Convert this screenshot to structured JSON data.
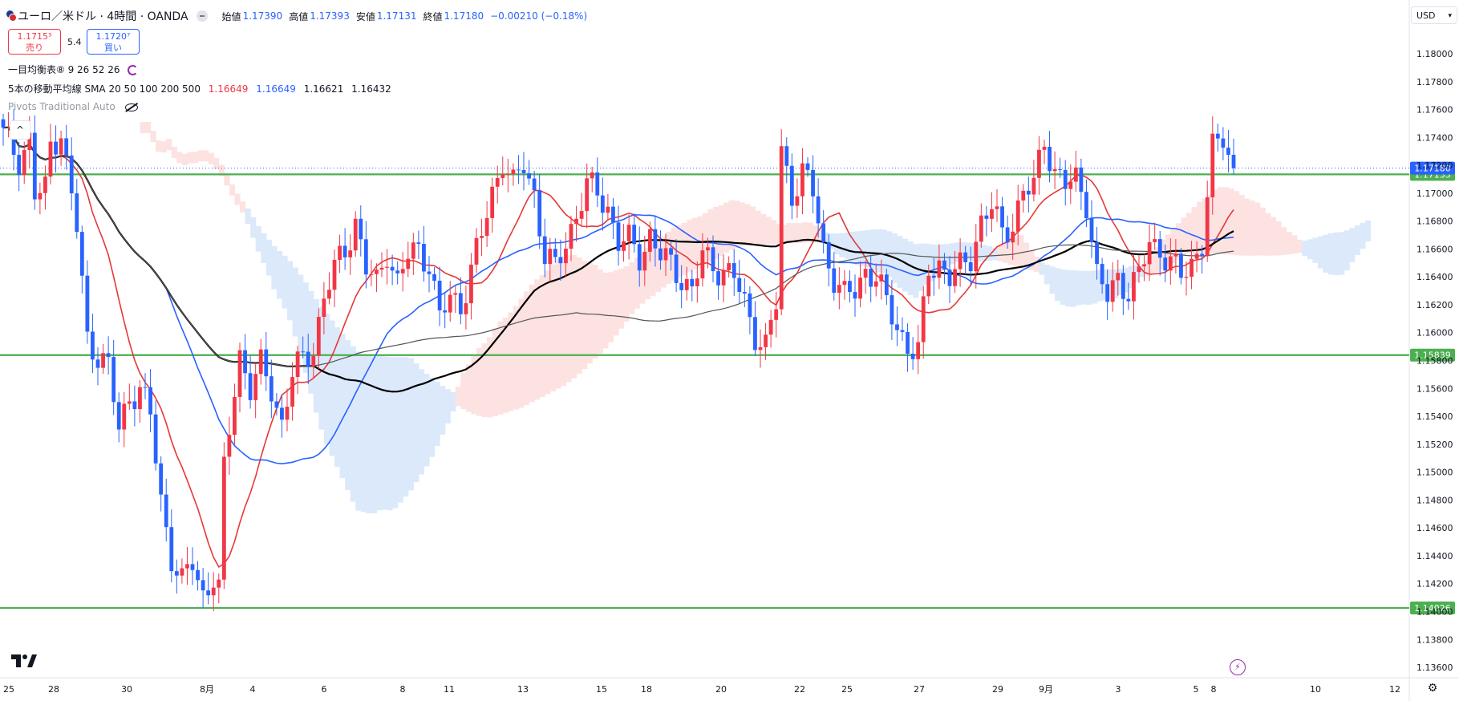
{
  "header": {
    "symbol_title": "ユーロ／米ドル · 4時間 · OANDA",
    "open_label": "始値",
    "open_value": "1.17390",
    "high_label": "高値",
    "high_value": "1.17393",
    "low_label": "安値",
    "low_value": "1.17131",
    "close_label": "終値",
    "close_value": "1.17180",
    "change": "−0.00210 (−0.18%)"
  },
  "trade": {
    "sell_price": "1.1715³",
    "sell_label": "売り",
    "spread": "5.4",
    "buy_price": "1.1720⁷",
    "buy_label": "買い"
  },
  "indicators": {
    "ichimoku": "一目均衡表⑧ 9 26 52 26",
    "sma_label": "5本の移動平均線 SMA 20 50 100 200 500",
    "sma_v1": "1.16649",
    "sma_v2": "1.16649",
    "sma_v3": "1.16621",
    "sma_v4": "1.16432",
    "pivots": "Pivots Traditional Auto",
    "collapse": "^"
  },
  "currency_button": "USD",
  "icons": {
    "logo": "tradingview-logo-icon",
    "flag": "eur-usd-flag-icon",
    "cycle": "ichimoku-cycle-icon",
    "eye_off": "eye-off-icon",
    "lightning": "lightning-icon",
    "settings": "gear-icon",
    "chevron": "chevron-down-icon"
  },
  "colors": {
    "bull": "#f23645",
    "bear": "#2962ff",
    "level_line": "#4caf50",
    "last_price": "#2962ff",
    "sma_fast": "#e53935",
    "sma_mid": "#2962ff",
    "sma_slow": "#000000",
    "sma_long": "#555555",
    "cloud_bull": "#fde2e2",
    "cloud_bear": "#dbe9fb"
  },
  "chart_data": {
    "type": "candlestick",
    "symbol": "EURUSD",
    "timeframe": "4時間",
    "ylim": [
      1.1355,
      1.183
    ],
    "y_ticks": [
      "1.18000",
      "1.17800",
      "1.17600",
      "1.17400",
      "1.17200",
      "1.17000",
      "1.16800",
      "1.16600",
      "1.16400",
      "1.16200",
      "1.16000",
      "1.15800",
      "1.15600",
      "1.15400",
      "1.15200",
      "1.15000",
      "1.14800",
      "1.14600",
      "1.14400",
      "1.14200",
      "1.14000",
      "1.13800",
      "1.13600"
    ],
    "x_labels": [
      "25",
      "28",
      "30",
      "8月",
      "4",
      "6",
      "8",
      "11",
      "13",
      "15",
      "18",
      "20",
      "22",
      "25",
      "27",
      "29",
      "9月",
      "3",
      "5",
      "8",
      "10",
      "12"
    ],
    "horizontal_levels": [
      {
        "value": 1.17135,
        "label": "1.17135"
      },
      {
        "value": 1.15839,
        "label": "1.15839"
      },
      {
        "value": 1.14026,
        "label": "1.14026"
      }
    ],
    "last_price": {
      "value": 1.1718,
      "label": "1.17180"
    },
    "anchors_close": [
      [
        0,
        1.1742
      ],
      [
        3,
        1.1725
      ],
      [
        5,
        1.1738
      ],
      [
        6,
        1.1698
      ],
      [
        8,
        1.1702
      ],
      [
        9,
        1.1735
      ],
      [
        11,
        1.1745
      ],
      [
        12,
        1.172
      ],
      [
        14,
        1.1675
      ],
      [
        16,
        1.1595
      ],
      [
        18,
        1.1585
      ],
      [
        20,
        1.1575
      ],
      [
        22,
        1.153
      ],
      [
        24,
        1.1555
      ],
      [
        26,
        1.156
      ],
      [
        28,
        1.154
      ],
      [
        30,
        1.148
      ],
      [
        32,
        1.144
      ],
      [
        34,
        1.142
      ],
      [
        36,
        1.1435
      ],
      [
        38,
        1.1412
      ],
      [
        40,
        1.1425
      ],
      [
        41,
        1.1415
      ],
      [
        42,
        1.15
      ],
      [
        44,
        1.156
      ],
      [
        45,
        1.1585
      ],
      [
        47,
        1.156
      ],
      [
        49,
        1.1575
      ],
      [
        51,
        1.156
      ],
      [
        53,
        1.1535
      ],
      [
        55,
        1.157
      ],
      [
        57,
        1.158
      ],
      [
        59,
        1.159
      ],
      [
        61,
        1.1625
      ],
      [
        63,
        1.1645
      ],
      [
        65,
        1.166
      ],
      [
        67,
        1.168
      ],
      [
        69,
        1.1645
      ],
      [
        71,
        1.1635
      ],
      [
        73,
        1.166
      ],
      [
        75,
        1.1635
      ],
      [
        77,
        1.1655
      ],
      [
        79,
        1.166
      ],
      [
        81,
        1.165
      ],
      [
        83,
        1.161
      ],
      [
        85,
        1.1625
      ],
      [
        87,
        1.162
      ],
      [
        89,
        1.1645
      ],
      [
        91,
        1.167
      ],
      [
        93,
        1.17
      ],
      [
        95,
        1.1725
      ],
      [
        97,
        1.1705
      ],
      [
        99,
        1.172
      ],
      [
        101,
        1.17
      ],
      [
        103,
        1.1655
      ],
      [
        105,
        1.1645
      ],
      [
        107,
        1.1665
      ],
      [
        109,
        1.1685
      ],
      [
        111,
        1.1705
      ],
      [
        113,
        1.17
      ],
      [
        115,
        1.169
      ],
      [
        117,
        1.1665
      ],
      [
        119,
        1.1665
      ],
      [
        121,
        1.1655
      ],
      [
        123,
        1.167
      ],
      [
        125,
        1.1655
      ],
      [
        127,
        1.1648
      ],
      [
        129,
        1.164
      ],
      [
        131,
        1.163
      ],
      [
        133,
        1.1655
      ],
      [
        135,
        1.1648
      ],
      [
        137,
        1.1645
      ],
      [
        139,
        1.164
      ],
      [
        141,
        1.162
      ],
      [
        143,
        1.16
      ],
      [
        145,
        1.159
      ],
      [
        147,
        1.162
      ],
      [
        148,
        1.173
      ],
      [
        150,
        1.17
      ],
      [
        152,
        1.1715
      ],
      [
        154,
        1.17
      ],
      [
        156,
        1.166
      ],
      [
        158,
        1.164
      ],
      [
        160,
        1.1625
      ],
      [
        162,
        1.163
      ],
      [
        164,
        1.1645
      ],
      [
        166,
        1.164
      ],
      [
        168,
        1.162
      ],
      [
        170,
        1.1605
      ],
      [
        172,
        1.159
      ],
      [
        174,
        1.1585
      ],
      [
        176,
        1.1645
      ],
      [
        178,
        1.165
      ],
      [
        180,
        1.164
      ],
      [
        182,
        1.1645
      ],
      [
        184,
        1.1655
      ],
      [
        186,
        1.168
      ],
      [
        188,
        1.169
      ],
      [
        190,
        1.167
      ],
      [
        192,
        1.168
      ],
      [
        194,
        1.17
      ],
      [
        196,
        1.1705
      ],
      [
        198,
        1.174
      ],
      [
        200,
        1.1715
      ],
      [
        202,
        1.1705
      ],
      [
        204,
        1.171
      ],
      [
        206,
        1.1695
      ],
      [
        208,
        1.164
      ],
      [
        210,
        1.1625
      ],
      [
        212,
        1.164
      ],
      [
        214,
        1.163
      ],
      [
        216,
        1.164
      ],
      [
        218,
        1.1665
      ],
      [
        220,
        1.166
      ],
      [
        222,
        1.165
      ],
      [
        224,
        1.164
      ],
      [
        226,
        1.165
      ],
      [
        228,
        1.1665
      ],
      [
        230,
        1.173
      ],
      [
        232,
        1.174
      ],
      [
        234,
        1.1718
      ]
    ],
    "series": [
      {
        "name": "SMA 20",
        "value": "1.16649"
      },
      {
        "name": "SMA 50",
        "value": "1.16649"
      },
      {
        "name": "SMA 100",
        "value": "1.16621"
      },
      {
        "name": "SMA 200",
        "value": "1.16432"
      }
    ]
  }
}
